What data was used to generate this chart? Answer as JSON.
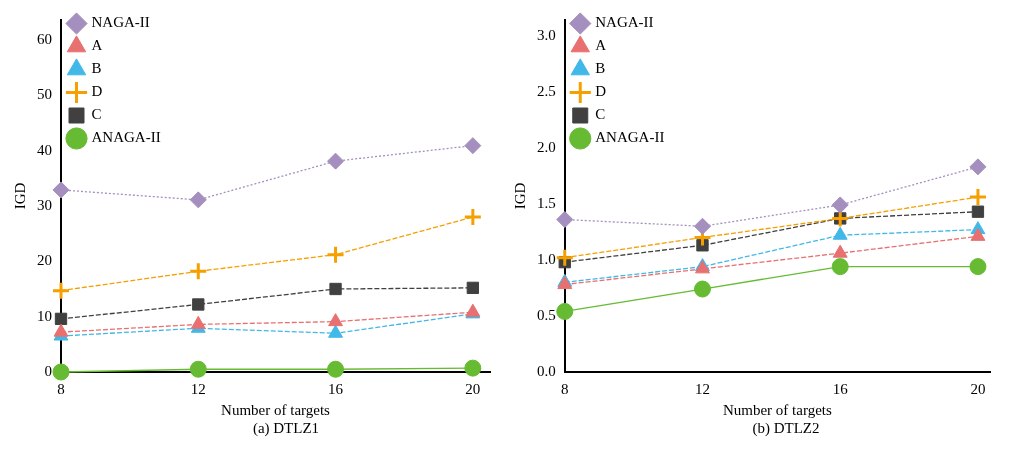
{
  "chart_data": [
    {
      "type": "line",
      "xlabel": "Number of targets",
      "ylabel": "IGD",
      "annotations": [
        "(a) DTLZ1"
      ],
      "x": [
        8,
        12,
        16,
        20
      ],
      "xlim": [
        8,
        20.5
      ],
      "xticks": [
        8,
        12,
        16,
        20
      ],
      "ylim": [
        0,
        63.6
      ],
      "yticks": [
        0,
        10,
        20,
        30,
        40,
        50,
        60
      ],
      "grid": false,
      "legend": "top left",
      "series": [
        {
          "name": "NAGA-II",
          "color": "#a48fbf",
          "marker": "diamond",
          "line_style": "dotted",
          "values": [
            32.9,
            31.1,
            38.1,
            40.9
          ]
        },
        {
          "name": "A",
          "color": "#e87070",
          "marker": "triangle",
          "line_style": "dashed",
          "values": [
            7.2,
            8.6,
            9.1,
            10.8
          ]
        },
        {
          "name": "B",
          "color": "#40b8e8",
          "marker": "triangle",
          "line_style": "dashed",
          "values": [
            6.5,
            7.9,
            7.0,
            10.5
          ]
        },
        {
          "name": "D",
          "color": "#f5a000",
          "marker": "cross",
          "line_style": "dashed",
          "values": [
            14.7,
            18.2,
            21.2,
            28.0
          ]
        },
        {
          "name": "C",
          "color": "#404040",
          "marker": "square",
          "line_style": "dashed",
          "values": [
            9.6,
            12.2,
            15.0,
            15.2
          ]
        },
        {
          "name": "ANAGA-II",
          "color": "#66bb33",
          "marker": "circle",
          "line_style": "solid",
          "values": [
            0,
            0.5,
            0.5,
            0.7
          ]
        }
      ]
    },
    {
      "type": "line",
      "xlabel": "Number of targets",
      "ylabel": "IGD",
      "annotations": [
        "(b) DTLZ2"
      ],
      "x": [
        8,
        12,
        16,
        20
      ],
      "xlim": [
        8,
        20.35
      ],
      "xticks": [
        8,
        12,
        16,
        20
      ],
      "ylim": [
        0,
        3.14
      ],
      "yticks": [
        {
          "value": 0,
          "label": "0.0"
        },
        0.5,
        {
          "value": 1,
          "label": "1.0"
        },
        1.5,
        {
          "value": 2,
          "label": "2.0"
        },
        2.5,
        {
          "value": 3,
          "label": "3.0"
        }
      ],
      "grid": false,
      "legend": "top left",
      "series": [
        {
          "name": "NAGA-II",
          "color": "#a48fbf",
          "marker": "diamond",
          "line_style": "dotted",
          "values": [
            1.36,
            1.3,
            1.49,
            1.83
          ]
        },
        {
          "name": "A",
          "color": "#e87070",
          "marker": "triangle",
          "line_style": "dashed",
          "values": [
            0.78,
            0.92,
            1.06,
            1.21
          ]
        },
        {
          "name": "B",
          "color": "#40b8e8",
          "marker": "triangle",
          "line_style": "dashed",
          "values": [
            0.8,
            0.94,
            1.22,
            1.27
          ]
        },
        {
          "name": "D",
          "color": "#f5a000",
          "marker": "cross",
          "line_style": "dashed",
          "values": [
            1.02,
            1.2,
            1.37,
            1.56
          ]
        },
        {
          "name": "C",
          "color": "#404040",
          "marker": "square",
          "line_style": "dashed",
          "values": [
            0.98,
            1.13,
            1.37,
            1.43
          ]
        },
        {
          "name": "ANAGA-II",
          "color": "#66bb33",
          "marker": "circle",
          "line_style": "solid",
          "values": [
            0.54,
            0.74,
            0.94,
            0.94
          ]
        }
      ]
    }
  ]
}
